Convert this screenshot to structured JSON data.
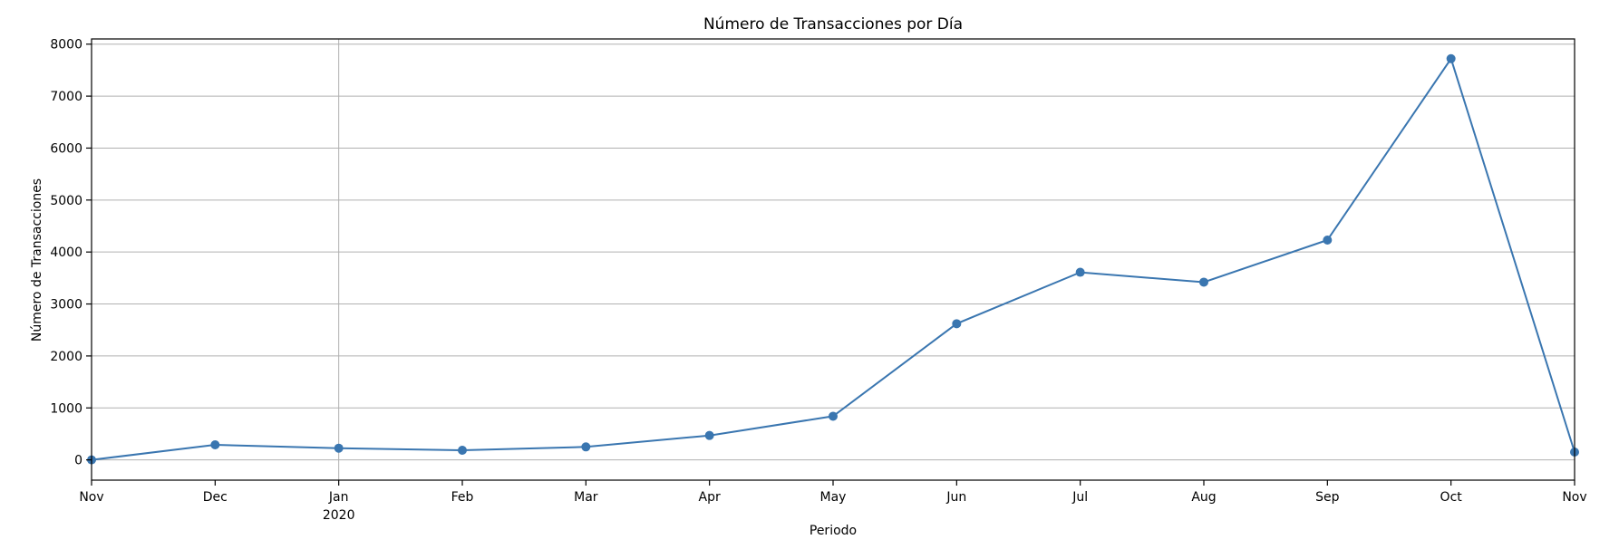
{
  "chart_data": {
    "type": "line",
    "title": "Número de Transacciones por Día",
    "xlabel": "Periodo",
    "ylabel": "Número de Transacciones",
    "x": [
      "2019-11",
      "2019-12",
      "2020-01",
      "2020-02",
      "2020-03",
      "2020-04",
      "2020-05",
      "2020-06",
      "2020-07",
      "2020-08",
      "2020-09",
      "2020-10",
      "2020-11"
    ],
    "x_tick_labels": [
      {
        "label": "Nov",
        "sublabel": ""
      },
      {
        "label": "Dec",
        "sublabel": ""
      },
      {
        "label": "Jan",
        "sublabel": "2020"
      },
      {
        "label": "Feb",
        "sublabel": ""
      },
      {
        "label": "Mar",
        "sublabel": ""
      },
      {
        "label": "Apr",
        "sublabel": ""
      },
      {
        "label": "May",
        "sublabel": ""
      },
      {
        "label": "Jun",
        "sublabel": ""
      },
      {
        "label": "Jul",
        "sublabel": ""
      },
      {
        "label": "Aug",
        "sublabel": ""
      },
      {
        "label": "Sep",
        "sublabel": ""
      },
      {
        "label": "Oct",
        "sublabel": ""
      },
      {
        "label": "Nov",
        "sublabel": ""
      }
    ],
    "series": [
      {
        "values": [
          0,
          290,
          225,
          185,
          250,
          470,
          840,
          2620,
          3610,
          3420,
          4230,
          7720,
          150
        ]
      }
    ],
    "y_ticks": [
      0,
      1000,
      2000,
      3000,
      4000,
      5000,
      6000,
      7000,
      8000
    ],
    "ylim": [
      -390,
      8100
    ],
    "grid": "horizontal plus vertical line at year boundary (Jan 2020)",
    "marker": "circle",
    "line_color": "#3a76b0"
  }
}
